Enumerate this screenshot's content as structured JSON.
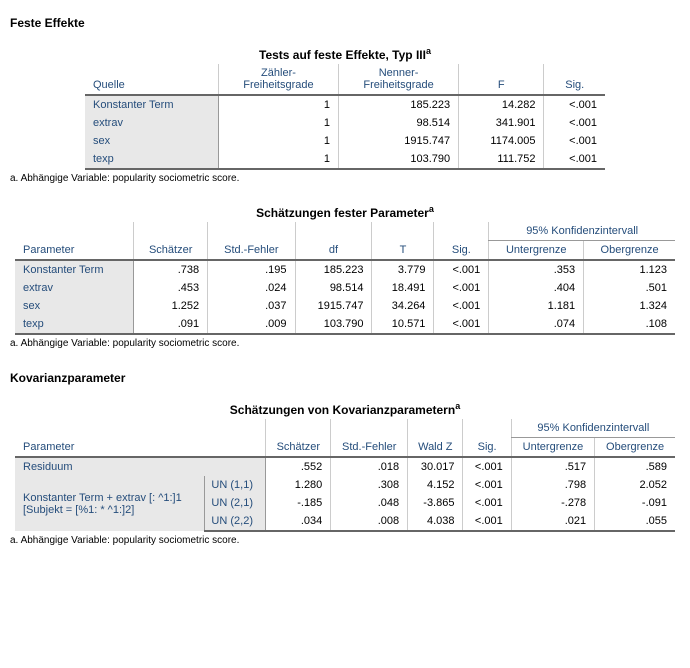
{
  "section1_heading": "Feste Effekte",
  "table1": {
    "title": "Tests auf feste Effekte, Typ III",
    "superscript": "a",
    "columns": [
      "Quelle",
      "Zähler-\nFreiheitsgrade",
      "Nenner-\nFreiheitsgrade",
      "F",
      "Sig."
    ],
    "rows": [
      [
        "Konstanter Term",
        "1",
        "185.223",
        "14.282",
        "<.001"
      ],
      [
        "extrav",
        "1",
        "98.514",
        "341.901",
        "<.001"
      ],
      [
        "sex",
        "1",
        "1915.747",
        "1174.005",
        "<.001"
      ],
      [
        "texp",
        "1",
        "103.790",
        "111.752",
        "<.001"
      ]
    ],
    "footnote": "a. Abhängige Variable: popularity sociometric score."
  },
  "table2": {
    "title": "Schätzungen fester Parameter",
    "superscript": "a",
    "group_header": "95% Konfidenzintervall",
    "columns": [
      "Parameter",
      "Schätzer",
      "Std.-Fehler",
      "df",
      "T",
      "Sig.",
      "Untergrenze",
      "Obergrenze"
    ],
    "rows": [
      [
        "Konstanter Term",
        ".738",
        ".195",
        "185.223",
        "3.779",
        "<.001",
        ".353",
        "1.123"
      ],
      [
        "extrav",
        ".453",
        ".024",
        "98.514",
        "18.491",
        "<.001",
        ".404",
        ".501"
      ],
      [
        "sex",
        "1.252",
        ".037",
        "1915.747",
        "34.264",
        "<.001",
        "1.181",
        "1.324"
      ],
      [
        "texp",
        ".091",
        ".009",
        "103.790",
        "10.571",
        "<.001",
        ".074",
        ".108"
      ]
    ],
    "footnote": "a. Abhängige Variable: popularity sociometric score."
  },
  "section2_heading": "Kovarianzparameter",
  "table3": {
    "title": "Schätzungen von Kovarianzparametern",
    "superscript": "a",
    "group_header": "95% Konfidenzintervall",
    "columns": [
      "Parameter",
      "Schätzer",
      "Std.-Fehler",
      "Wald Z",
      "Sig.",
      "Untergrenze",
      "Obergrenze"
    ],
    "rows": [
      {
        "label1": "Residuum",
        "label2": "",
        "vals": [
          ".552",
          ".018",
          "30.017",
          "<.001",
          ".517",
          ".589"
        ]
      },
      {
        "label1": "Konstanter Term + extrav [: ^1:]1 [Subjekt = [%1: * ^1:]2]",
        "label2": "UN (1,1)",
        "vals": [
          "1.280",
          ".308",
          "4.152",
          "<.001",
          ".798",
          "2.052"
        ]
      },
      {
        "label1": "",
        "label2": "UN (2,1)",
        "vals": [
          "-.185",
          ".048",
          "-3.865",
          "<.001",
          "-.278",
          "-.091"
        ]
      },
      {
        "label1": "",
        "label2": "UN (2,2)",
        "vals": [
          ".034",
          ".008",
          "4.038",
          "<.001",
          ".021",
          ".055"
        ]
      }
    ],
    "footnote": "a. Abhängige Variable: popularity sociometric score."
  }
}
